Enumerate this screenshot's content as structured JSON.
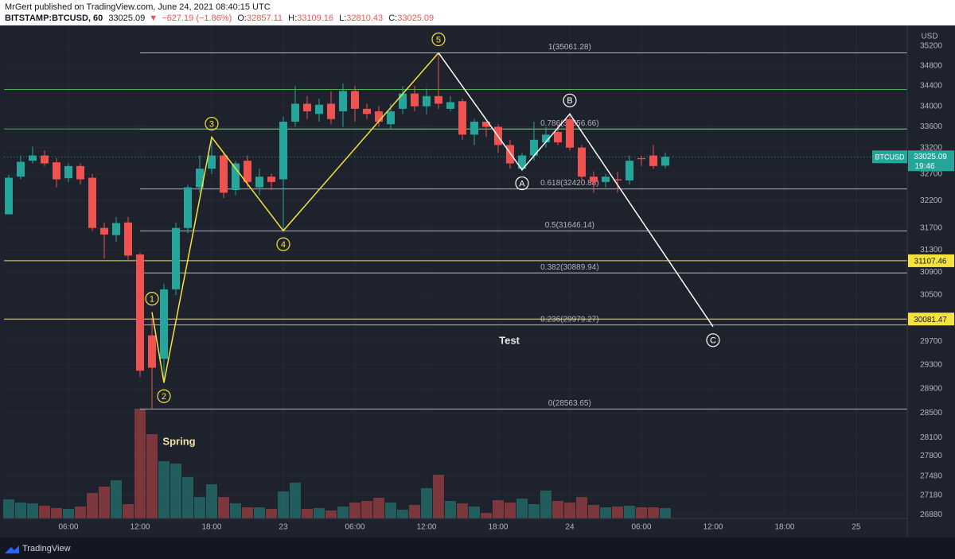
{
  "header": {
    "publisher": "MrGert published on TradingView.com, June 24, 2021 08:40:15 UTC",
    "symbol": "BITSTAMP:BTCUSD, 60",
    "last": "33025.09",
    "arrow": "▼",
    "change": "−627.19 (−1.86%)",
    "ohlc": [
      {
        "label": "O:",
        "value": "32857.11"
      },
      {
        "label": "H:",
        "value": "33109.16"
      },
      {
        "label": "L:",
        "value": "32810.43"
      },
      {
        "label": "C:",
        "value": "33025.09"
      }
    ]
  },
  "footer": {
    "brand": "TradingView"
  },
  "chart_data": {
    "type": "candlestick",
    "currency": "USD",
    "log_scale": true,
    "grid": true,
    "up_color": "#26a69a",
    "down_color": "#ef5350",
    "x": [
      -23,
      -22,
      -21,
      -20,
      -19,
      -18,
      -17,
      -16,
      -15,
      -14,
      -13,
      -12,
      -11,
      -10,
      -9,
      -8,
      -7,
      -6,
      -5,
      -4,
      -3,
      -2,
      -1,
      0,
      1,
      2,
      3,
      4,
      5,
      6,
      7,
      8,
      9,
      10,
      11,
      12,
      13,
      14,
      15,
      16,
      17,
      18,
      19,
      20,
      21,
      22,
      23,
      24,
      25,
      26,
      27,
      28,
      29,
      30,
      31,
      32
    ],
    "open": [
      31950,
      32650,
      32950,
      33050,
      32920,
      32620,
      32850,
      32630,
      31700,
      31570,
      31800,
      31220,
      29800,
      29400,
      30600,
      31700,
      32450,
      32800,
      33050,
      32400,
      32950,
      32450,
      32650,
      32600,
      33700,
      34050,
      33850,
      34050,
      33900,
      34300,
      33950,
      33900,
      33650,
      33950,
      34250,
      34000,
      34200,
      33950,
      34100,
      33450,
      33700,
      33600,
      33250,
      32800,
      33050,
      33300,
      33500,
      33750,
      33200,
      32650,
      32550,
      32600,
      32580,
      33000,
      33050,
      32857.11
    ],
    "high": [
      32680,
      33050,
      33220,
      33150,
      33000,
      32900,
      32900,
      32700,
      31800,
      31900,
      31900,
      31250,
      30100,
      30700,
      31800,
      32500,
      33050,
      33400,
      33100,
      32950,
      33050,
      32800,
      32700,
      33800,
      34400,
      34200,
      34150,
      34300,
      34450,
      34400,
      34050,
      34000,
      34050,
      34400,
      34400,
      34350,
      35061.28,
      34200,
      34150,
      33750,
      33700,
      33650,
      33350,
      33100,
      33700,
      33600,
      33650,
      33850,
      33250,
      32750,
      32700,
      32750,
      33050,
      33050,
      33250,
      33109.16
    ],
    "low": [
      31950,
      32600,
      32900,
      32850,
      32450,
      32550,
      32500,
      31650,
      31150,
      31450,
      31100,
      29100,
      28563.65,
      29000,
      30500,
      31600,
      32350,
      32700,
      32250,
      32300,
      32450,
      32300,
      32400,
      31650,
      33600,
      33750,
      33700,
      33650,
      33600,
      33700,
      33750,
      33600,
      33550,
      33850,
      33900,
      33850,
      33950,
      33900,
      33350,
      33250,
      33400,
      33100,
      32800,
      32750,
      32950,
      33200,
      33250,
      33150,
      32550,
      32350,
      32450,
      32350,
      32500,
      32850,
      32800,
      32810.43
    ],
    "close": [
      32630,
      32930,
      33050,
      32900,
      32600,
      32850,
      32600,
      31700,
      31580,
      31790,
      31200,
      29200,
      29250,
      30600,
      31700,
      32450,
      32800,
      33050,
      32350,
      32900,
      32550,
      32650,
      32550,
      33700,
      34050,
      33900,
      34030,
      33750,
      34300,
      33950,
      33850,
      33700,
      33900,
      34250,
      34000,
      34200,
      34050,
      34080,
      33450,
      33700,
      33600,
      33250,
      32900,
      33050,
      33350,
      33450,
      33300,
      33200,
      32650,
      32550,
      32650,
      32580,
      32950,
      32980,
      32850,
      33025.09
    ],
    "volume": [
      240,
      200,
      190,
      160,
      130,
      120,
      150,
      320,
      400,
      480,
      180,
      1380,
      1060,
      720,
      690,
      520,
      270,
      430,
      270,
      190,
      140,
      140,
      120,
      340,
      450,
      120,
      130,
      100,
      150,
      200,
      220,
      260,
      200,
      110,
      170,
      380,
      550,
      220,
      190,
      150,
      70,
      230,
      200,
      250,
      180,
      350,
      220,
      200,
      270,
      170,
      140,
      150,
      160,
      140,
      140,
      130
    ],
    "xlim": [
      -23.4,
      52.27
    ],
    "xticks": [
      {
        "value": -18,
        "label": "06:00"
      },
      {
        "value": -12,
        "label": "12:00"
      },
      {
        "value": -6,
        "label": "18:00"
      },
      {
        "value": 0,
        "label": "23"
      },
      {
        "value": 6,
        "label": "06:00"
      },
      {
        "value": 12,
        "label": "12:00"
      },
      {
        "value": 18,
        "label": "18:00"
      },
      {
        "value": 24,
        "label": "24"
      },
      {
        "value": 30,
        "label": "06:00"
      },
      {
        "value": 36,
        "label": "12:00"
      },
      {
        "value": 42,
        "label": "18:00"
      },
      {
        "value": 48,
        "label": "25"
      }
    ],
    "ylim": [
      26820,
      35570
    ],
    "yticks": [
      26880,
      27180,
      27480,
      27800,
      28100,
      28500,
      28900,
      29300,
      29700,
      30100,
      30500,
      30900,
      31300,
      31700,
      32200,
      32700,
      33200,
      33600,
      34000,
      34400,
      34800,
      35200
    ],
    "fib_color": "#b2b5be",
    "fib_levels": [
      {
        "value": 35061.28,
        "label": "1(35061.28)"
      },
      {
        "value": 33556.66,
        "label": "0.786(33556.66)"
      },
      {
        "value": 32420.88,
        "label": "0.618(32420.88)"
      },
      {
        "value": 31646.14,
        "label": "0.5(31646.14)"
      },
      {
        "value": 30889.94,
        "label": "0.382(30889.94)"
      },
      {
        "value": 29979.27,
        "label": "0.236(29979.27)"
      },
      {
        "value": 28563.65,
        "label": "0(28563.65)"
      }
    ],
    "green_lines": {
      "color": "#4caf50",
      "values": [
        34330,
        33560
      ]
    },
    "yellow_lines": {
      "color": "#f5e33b",
      "values": [
        31107.46,
        30081.47
      ]
    },
    "last_price_label": {
      "symbol": "BTCUSD",
      "time": "19:46"
    },
    "waves": [
      {
        "color": "#f5e33b",
        "x": [
          -11,
          -10,
          -6,
          0,
          13
        ],
        "y": [
          30200,
          29000,
          33400,
          31650,
          35061.28
        ],
        "labels": [
          "1",
          "2",
          "3",
          "4",
          "5"
        ]
      },
      {
        "color": "#ffffff",
        "x": [
          13,
          20,
          24,
          36
        ],
        "y": [
          35061.28,
          32780,
          33850,
          29950
        ],
        "labels": [
          null,
          "A",
          "B",
          "C"
        ]
      }
    ],
    "annotations": [
      "Spring",
      "Test"
    ]
  }
}
